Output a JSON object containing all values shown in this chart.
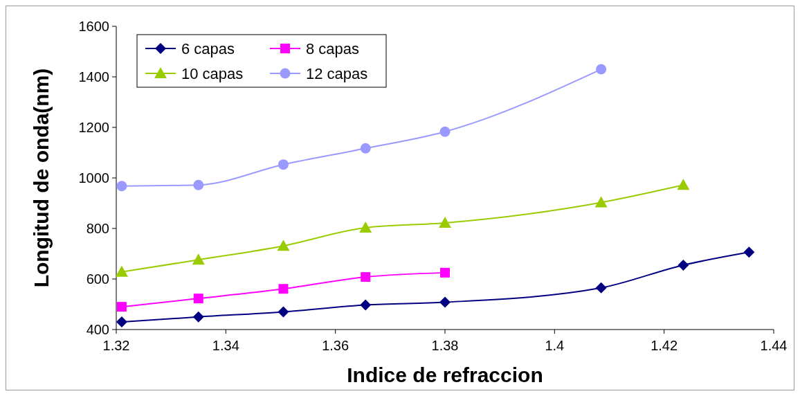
{
  "chart_data": {
    "type": "line",
    "xlabel": "Indice de refraccion",
    "ylabel": "Longitud de onda(nm)",
    "xlim": [
      1.32,
      1.44
    ],
    "xticks": [
      1.32,
      1.34,
      1.36,
      1.38,
      1.4,
      1.42,
      1.44
    ],
    "ylim": [
      400,
      1600
    ],
    "yticks": [
      400,
      600,
      800,
      1000,
      1200,
      1400,
      1600
    ],
    "grid": false,
    "legend": "top left",
    "line_style": "solid",
    "series": [
      {
        "name": "6 capas",
        "color": "#000080",
        "marker": "diamond",
        "x": [
          1.321,
          1.335,
          1.3505,
          1.3655,
          1.38,
          1.4085,
          1.4235,
          1.4355
        ],
        "values": [
          430,
          450,
          470,
          497,
          508,
          565,
          655,
          706
        ]
      },
      {
        "name": "8 capas",
        "color": "#ff00ff",
        "marker": "square",
        "x": [
          1.321,
          1.335,
          1.3505,
          1.3655,
          1.38
        ],
        "values": [
          490,
          523,
          561,
          608,
          625
        ]
      },
      {
        "name": "10 capas",
        "color": "#99cc00",
        "marker": "triangle",
        "x": [
          1.321,
          1.335,
          1.3505,
          1.3655,
          1.38,
          1.4085,
          1.4235
        ],
        "values": [
          628,
          676,
          731,
          803,
          822,
          903,
          972
        ]
      },
      {
        "name": "12 capas",
        "color": "#9999ff",
        "marker": "circle",
        "x": [
          1.321,
          1.335,
          1.3505,
          1.3655,
          1.38,
          1.4085
        ],
        "values": [
          968,
          972,
          1053,
          1117,
          1183,
          1430
        ]
      }
    ]
  }
}
